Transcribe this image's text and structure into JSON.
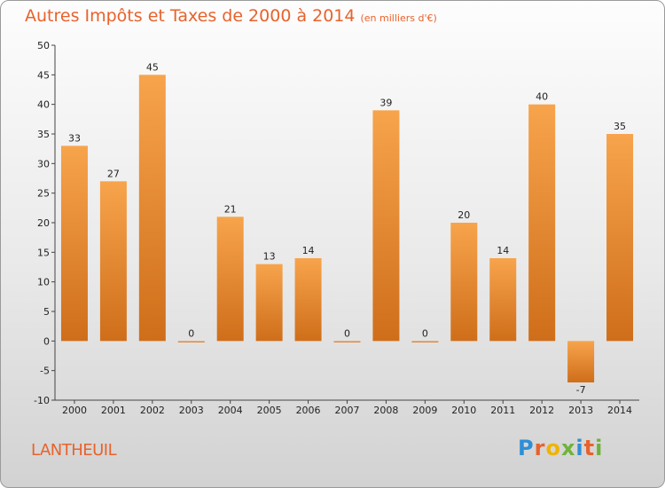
{
  "header": {
    "title": "Autres Impôts et Taxes de 2000 à 2014",
    "unit": "(en milliers d'€)"
  },
  "footer": {
    "place": "LANTHEUIL",
    "logo": "Proxiti"
  },
  "colors": {
    "bar_top": "#f7a44c",
    "bar_bottom": "#cf6e1a",
    "accent": "#e8622c"
  },
  "chart_data": {
    "type": "bar",
    "categories": [
      "2000",
      "2001",
      "2002",
      "2003",
      "2004",
      "2005",
      "2006",
      "2007",
      "2008",
      "2009",
      "2010",
      "2011",
      "2012",
      "2013",
      "2014"
    ],
    "values": [
      33,
      27,
      45,
      0,
      21,
      13,
      14,
      0,
      39,
      0,
      20,
      14,
      40,
      -7,
      35
    ],
    "ylim": [
      -10,
      50
    ],
    "yticks": [
      -10,
      -5,
      0,
      5,
      10,
      15,
      20,
      25,
      30,
      35,
      40,
      45,
      50
    ],
    "grid": false,
    "legend": "none"
  }
}
